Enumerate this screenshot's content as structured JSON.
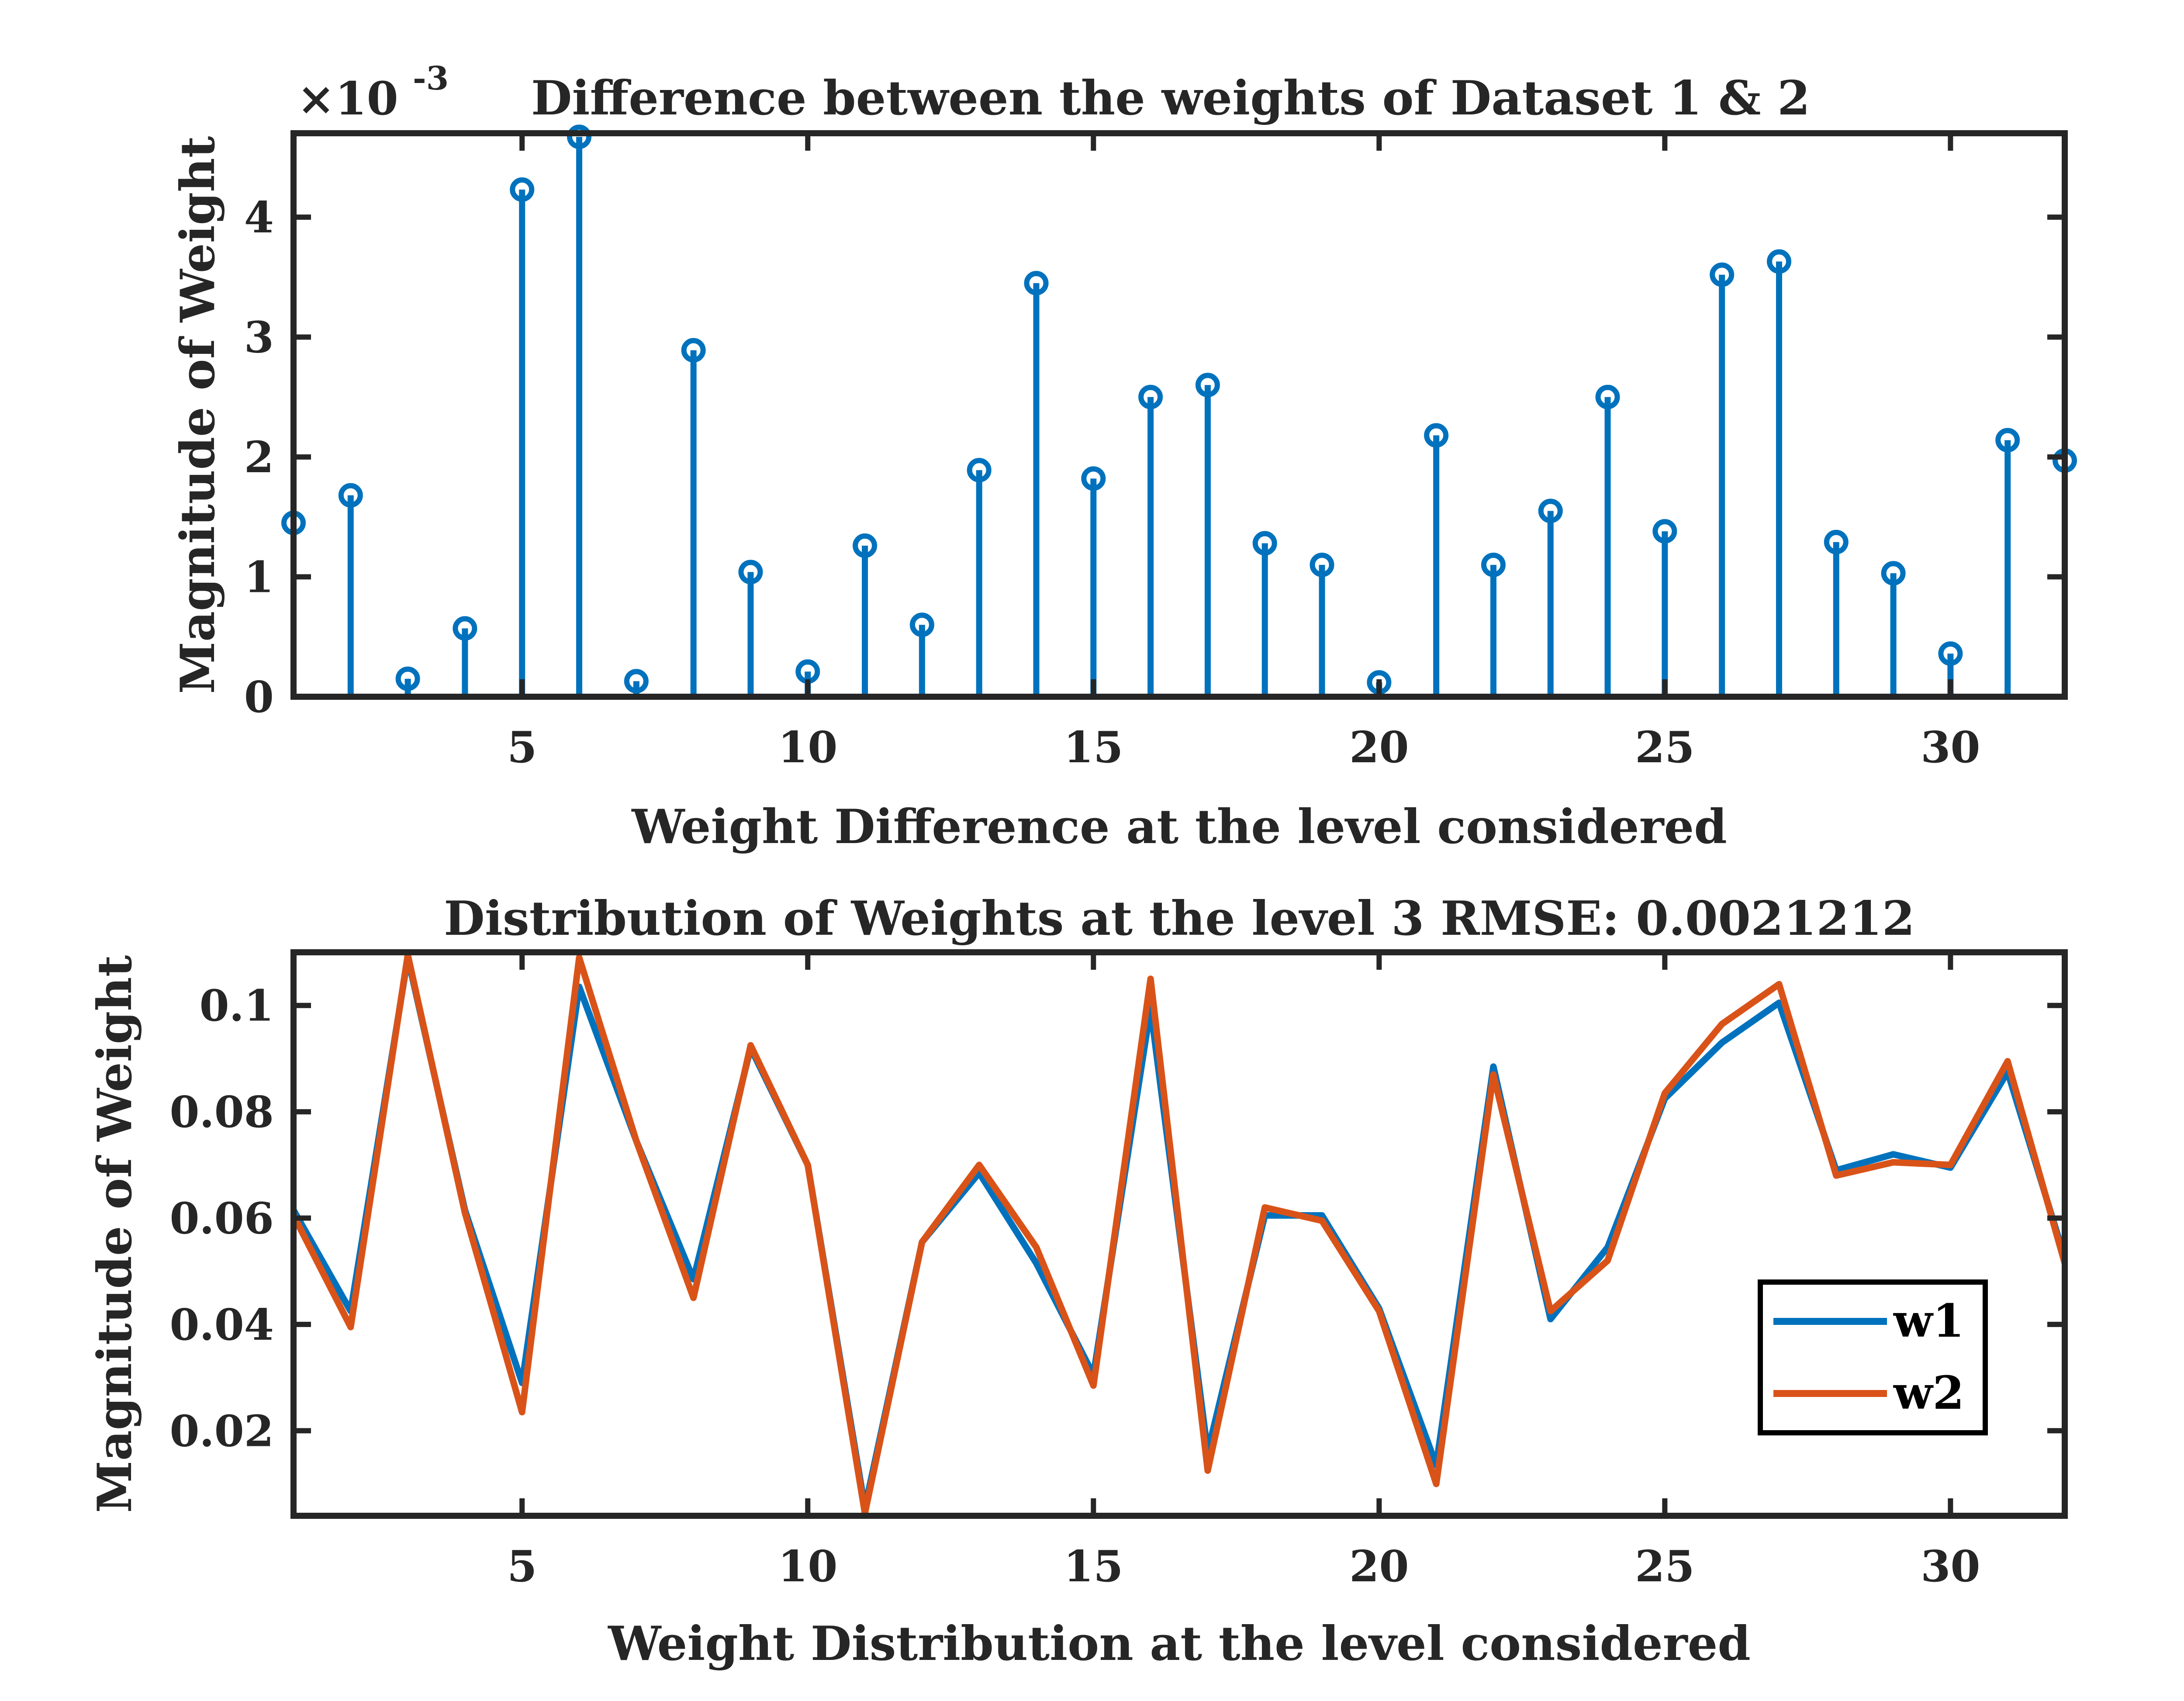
{
  "chart_data": [
    {
      "type": "stem",
      "title": "Difference between the weights of Dataset 1 & 2",
      "xlabel": "Weight Difference at the level considered",
      "ylabel": "Magnitude of Weight",
      "exponent": {
        "times": "×10",
        "power": "-3"
      },
      "xlim": [
        1,
        32
      ],
      "ylim": [
        0,
        4.7
      ],
      "xticks": [
        5,
        10,
        15,
        20,
        25,
        30
      ],
      "yticks": [
        0,
        1,
        2,
        3,
        4
      ],
      "grid": false,
      "x": [
        1,
        2,
        3,
        4,
        5,
        6,
        7,
        8,
        9,
        10,
        11,
        12,
        13,
        14,
        15,
        16,
        17,
        18,
        19,
        20,
        21,
        22,
        23,
        24,
        25,
        26,
        27,
        28,
        29,
        30,
        31,
        32
      ],
      "series": [
        {
          "color": "#0072BD",
          "values": [
            1.45,
            1.68,
            0.15,
            0.57,
            4.23,
            4.67,
            0.13,
            2.89,
            1.04,
            0.21,
            1.26,
            0.6,
            1.89,
            3.45,
            1.82,
            2.5,
            2.6,
            1.28,
            1.1,
            0.12,
            2.18,
            1.1,
            1.55,
            2.5,
            1.38,
            3.52,
            3.63,
            1.29,
            1.03,
            0.36,
            2.14,
            1.97
          ]
        }
      ]
    },
    {
      "type": "line",
      "title": "Distribution of Weights at the level 3 RMSE: 0.0021212",
      "xlabel": "Weight Distribution at the level considered",
      "ylabel": "Magnitude of Weight",
      "xlim": [
        1,
        32
      ],
      "ylim": [
        0.004,
        0.11
      ],
      "xticks": [
        5,
        10,
        15,
        20,
        25,
        30
      ],
      "yticks": [
        0.02,
        0.04,
        0.06,
        0.08,
        0.1
      ],
      "ytick_labels": [
        "0.02",
        "0.04",
        "0.06",
        "0.08",
        "0.1"
      ],
      "grid": false,
      "legend": "lower-right",
      "x": [
        1,
        2,
        3,
        4,
        5,
        6,
        7,
        8,
        9,
        10,
        11,
        12,
        13,
        14,
        15,
        16,
        17,
        18,
        19,
        20,
        21,
        22,
        23,
        24,
        25,
        26,
        27,
        28,
        29,
        30,
        31,
        32
      ],
      "series": [
        {
          "name": "w1",
          "color": "#0072BD",
          "values": [
            0.0615,
            0.0425,
            0.109,
            0.0615,
            0.029,
            0.1035,
            0.0745,
            0.0485,
            0.092,
            0.07,
            0.0055,
            0.0555,
            0.0685,
            0.0515,
            0.0305,
            0.0995,
            0.016,
            0.0605,
            0.0605,
            0.043,
            0.0135,
            0.0885,
            0.041,
            0.0545,
            0.0825,
            0.093,
            0.1005,
            0.069,
            0.072,
            0.0695,
            0.0875,
            0.0525
          ]
        },
        {
          "name": "w2",
          "color": "#D95319",
          "values": [
            0.0605,
            0.0395,
            0.1095,
            0.061,
            0.0235,
            0.109,
            0.0745,
            0.045,
            0.0925,
            0.07,
            0.0045,
            0.0555,
            0.07,
            0.0545,
            0.0285,
            0.105,
            0.0125,
            0.062,
            0.0595,
            0.0425,
            0.01,
            0.087,
            0.0425,
            0.052,
            0.0835,
            0.0965,
            0.104,
            0.068,
            0.0705,
            0.07,
            0.0895,
            0.0515
          ]
        }
      ]
    }
  ]
}
